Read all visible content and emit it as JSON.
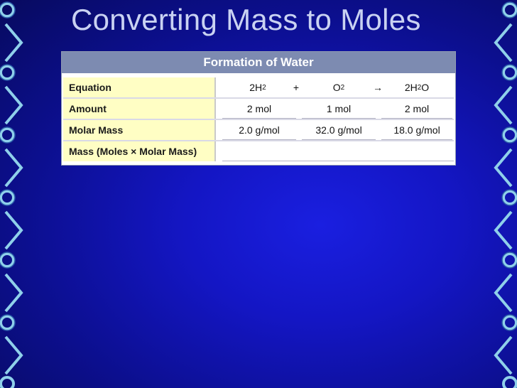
{
  "slide": {
    "title": "Converting Mass to Moles"
  },
  "table": {
    "caption": "Formation of Water",
    "rows": [
      {
        "label": "Equation"
      },
      {
        "label": "Amount",
        "values": [
          "2 mol",
          "1 mol",
          "2 mol"
        ]
      },
      {
        "label": "Molar Mass",
        "values": [
          "2.0 g/mol",
          "32.0 g/mol",
          "18.0 g/mol"
        ]
      },
      {
        "label": "Mass (Moles × Molar Mass)",
        "values": []
      }
    ],
    "equation": {
      "reactant1_coef": "2H",
      "reactant1_sub": "2",
      "plus": "+",
      "reactant2": "O",
      "reactant2_sub": "2",
      "arrow": "→",
      "product_pre": "2H",
      "product_sub": "2",
      "product_post": "O"
    }
  },
  "colors": {
    "background": "#1416c4",
    "title_text": "#c9d2f2",
    "table_header": "#7d8bb1",
    "label_fill": "#fffec4",
    "chain": "#8fd0ea"
  }
}
